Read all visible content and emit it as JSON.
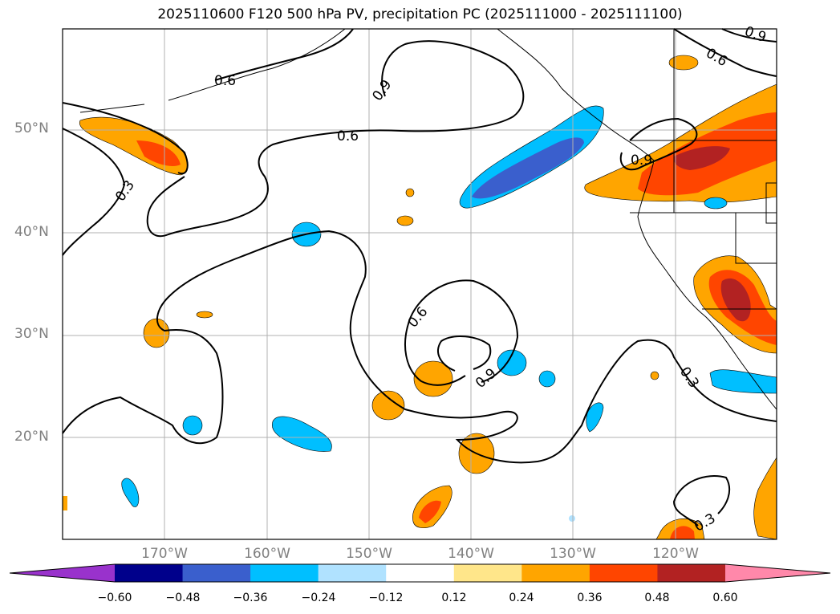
{
  "title": "2025110600 F120 500 hPa PV, precipitation PC (2025111000 - 2025111100)",
  "lat_labels": [
    "50°N",
    "40°N",
    "30°N",
    "20°N"
  ],
  "lon_labels": [
    "170°W",
    "160°W",
    "150°W",
    "140°W",
    "130°W",
    "120°W"
  ],
  "contour_labels": [
    "0.6",
    "0.9",
    "0.6",
    "0.3",
    "0.6",
    "0.9",
    "0.3",
    "0.3",
    "0.6",
    "0.9",
    "0.9"
  ],
  "colorbar": {
    "ticks": [
      "−0.60",
      "−0.48",
      "−0.36",
      "−0.24",
      "−0.12",
      "0.12",
      "0.24",
      "0.36",
      "0.48",
      "0.60"
    ],
    "colors": [
      "#9932cc",
      "#00008b",
      "#3a5fcd",
      "#00bfff",
      "#b0e2ff",
      "#ffffff",
      "#ffe68a",
      "#ffa500",
      "#ff4500",
      "#b22222",
      "#ff88aa"
    ]
  },
  "colors": {
    "orange": "#ffa500",
    "red": "#ff4500",
    "darkred": "#b22222",
    "yellow": "#ffe68a",
    "cyan": "#00bfff",
    "lightblue": "#b0e2ff",
    "blue": "#3a5fcd"
  }
}
